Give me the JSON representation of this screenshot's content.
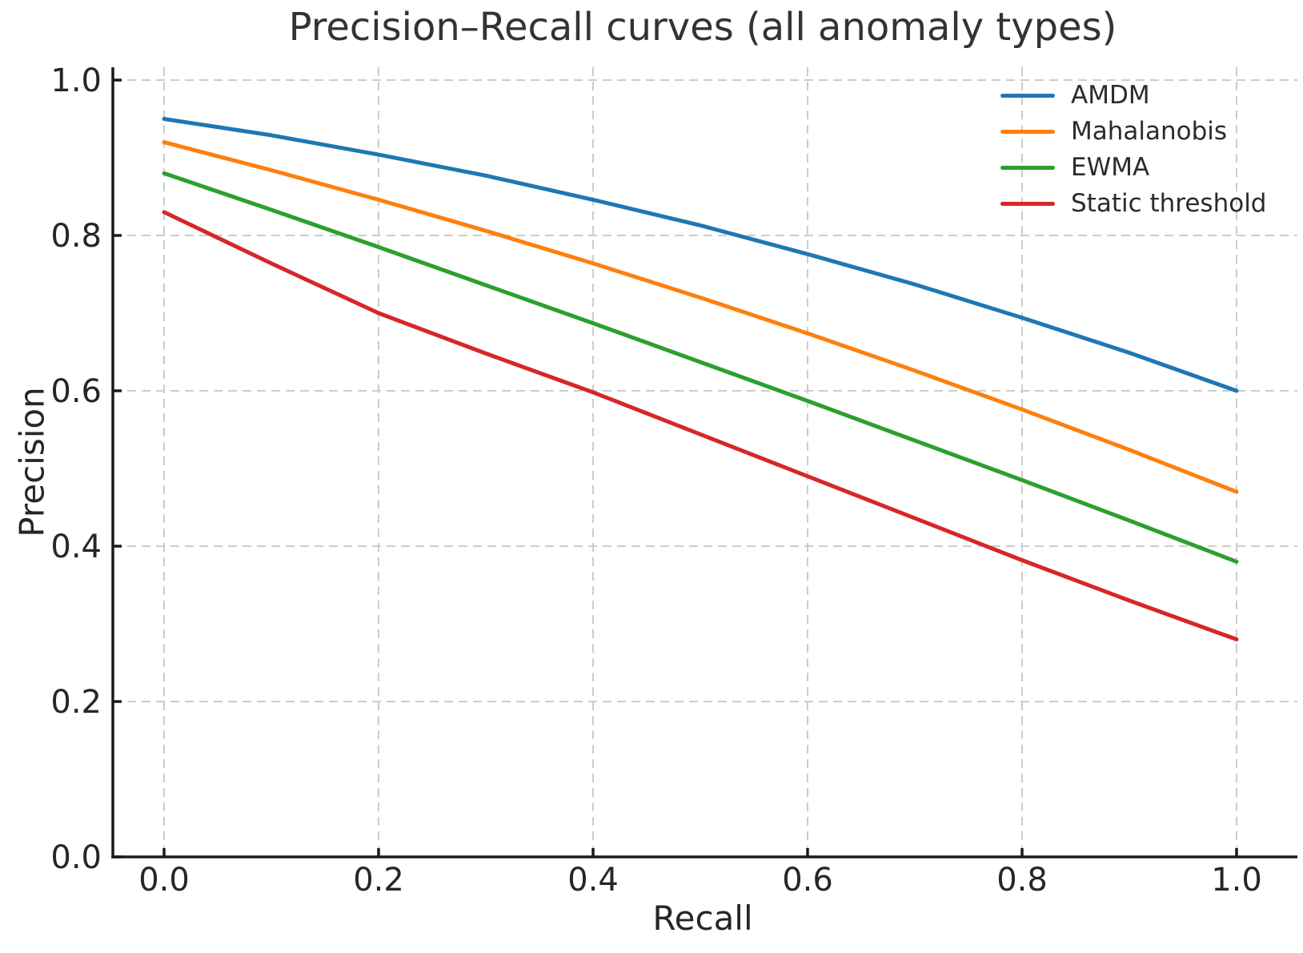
{
  "chart_data": {
    "type": "line",
    "title": "Precision–Recall curves (all anomaly types)",
    "xlabel": "Recall",
    "ylabel": "Precision",
    "x": [
      0.0,
      0.1,
      0.2,
      0.3,
      0.4,
      0.5,
      0.6,
      0.7,
      0.8,
      0.9,
      1.0
    ],
    "series": [
      {
        "name": "AMDM",
        "color": "#1f77b4",
        "values": [
          0.95,
          0.929,
          0.904,
          0.877,
          0.846,
          0.813,
          0.776,
          0.737,
          0.694,
          0.649,
          0.6
        ]
      },
      {
        "name": "Mahalanobis",
        "color": "#ff7f0e",
        "values": [
          0.92,
          0.884,
          0.846,
          0.806,
          0.764,
          0.72,
          0.674,
          0.626,
          0.576,
          0.524,
          0.47
        ]
      },
      {
        "name": "EWMA",
        "color": "#2ca02c",
        "values": [
          0.88,
          0.833,
          0.785,
          0.736,
          0.687,
          0.637,
          0.587,
          0.536,
          0.485,
          0.433,
          0.38
        ]
      },
      {
        "name": "Static threshold",
        "color": "#d62728",
        "values": [
          0.83,
          0.764,
          0.7,
          0.648,
          0.598,
          0.544,
          0.49,
          0.436,
          0.382,
          0.33,
          0.28
        ]
      }
    ],
    "xlim": [
      -0.05,
      1.05
    ],
    "ylim": [
      0.0,
      1.02
    ],
    "xticks": [
      0.0,
      0.2,
      0.4,
      0.6,
      0.8,
      1.0
    ],
    "yticks": [
      0.0,
      0.2,
      0.4,
      0.6,
      0.8,
      1.0
    ],
    "xtick_labels": [
      "0.0",
      "0.2",
      "0.4",
      "0.6",
      "0.8",
      "1.0"
    ],
    "ytick_labels": [
      "0.0",
      "0.2",
      "0.4",
      "0.6",
      "0.8",
      "1.0"
    ],
    "grid": true,
    "grid_style": "dashed",
    "legend_position": "upper right",
    "legend_frame": false
  }
}
